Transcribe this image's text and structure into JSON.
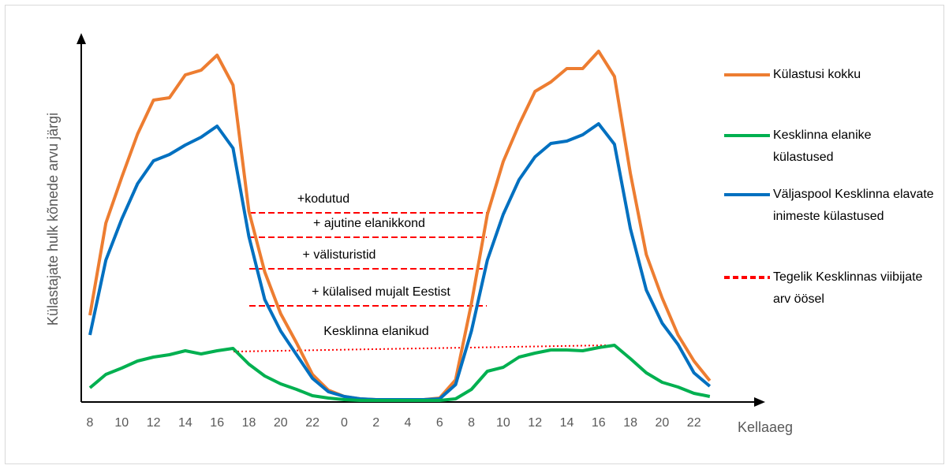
{
  "chart_data": {
    "type": "line",
    "y_label": "Külastajate hulk kõnede arvu järgi",
    "x_label": "Kellaaeg",
    "categories": [
      "8",
      null,
      "10",
      null,
      "12",
      null,
      "14",
      null,
      "16",
      null,
      "18",
      null,
      "20",
      null,
      "22",
      null,
      "0",
      null,
      "2",
      null,
      "4",
      null,
      "6",
      null,
      "8",
      null,
      "10",
      null,
      "12",
      null,
      "14",
      null,
      "16",
      null,
      "18",
      null,
      "20",
      null,
      "22",
      null
    ],
    "ylim": [
      0,
      460
    ],
    "series": [
      {
        "name": "Külastusi kokku",
        "color": "#ed7d31",
        "values": [
          110,
          227,
          285,
          340,
          383,
          386,
          415,
          421,
          440,
          402,
          242,
          165,
          112,
          75,
          35,
          15,
          7,
          4,
          3,
          3,
          3,
          3,
          5,
          28,
          125,
          238,
          305,
          352,
          394,
          406,
          423,
          423,
          445,
          413,
          290,
          187,
          132,
          85,
          52,
          27
        ]
      },
      {
        "name": "Kesklinna elanike külastused",
        "color": "#00b050",
        "values": [
          18,
          35,
          43,
          52,
          57,
          60,
          65,
          61,
          65,
          68,
          48,
          33,
          23,
          16,
          8,
          5,
          3,
          2,
          2,
          2,
          2,
          2,
          2,
          4,
          16,
          39,
          44,
          57,
          62,
          66,
          66,
          65,
          69,
          72,
          55,
          37,
          25,
          19,
          11,
          7
        ]
      },
      {
        "name": "Väljaspool Kesklinna elavate inimeste külastused",
        "color": "#0070c0",
        "values": [
          85,
          180,
          232,
          277,
          306,
          314,
          326,
          336,
          350,
          322,
          210,
          130,
          90,
          60,
          30,
          13,
          7,
          4,
          3,
          3,
          3,
          3,
          4,
          22,
          90,
          180,
          238,
          282,
          311,
          328,
          331,
          339,
          353,
          327,
          220,
          142,
          100,
          73,
          37,
          20
        ]
      }
    ],
    "reference": {
      "name": "Tegelik Kesklinnas viibijate arv öösel",
      "color": "#ff0000"
    },
    "annotations": [
      {
        "text": "+kodutud",
        "y_start": 240,
        "y_end": 240
      },
      {
        "text": "+ ajutine elanikkond",
        "y_start": 209,
        "y_end": 209
      },
      {
        "text": "+ välisturistid",
        "y_start": 169,
        "y_end": 169
      },
      {
        "text": "+ külalised mujalt Eestist",
        "y_start": 122,
        "y_end": 122
      },
      {
        "text": "Kesklinna elanikud",
        "y_start": 64,
        "y_end": 72
      }
    ]
  }
}
